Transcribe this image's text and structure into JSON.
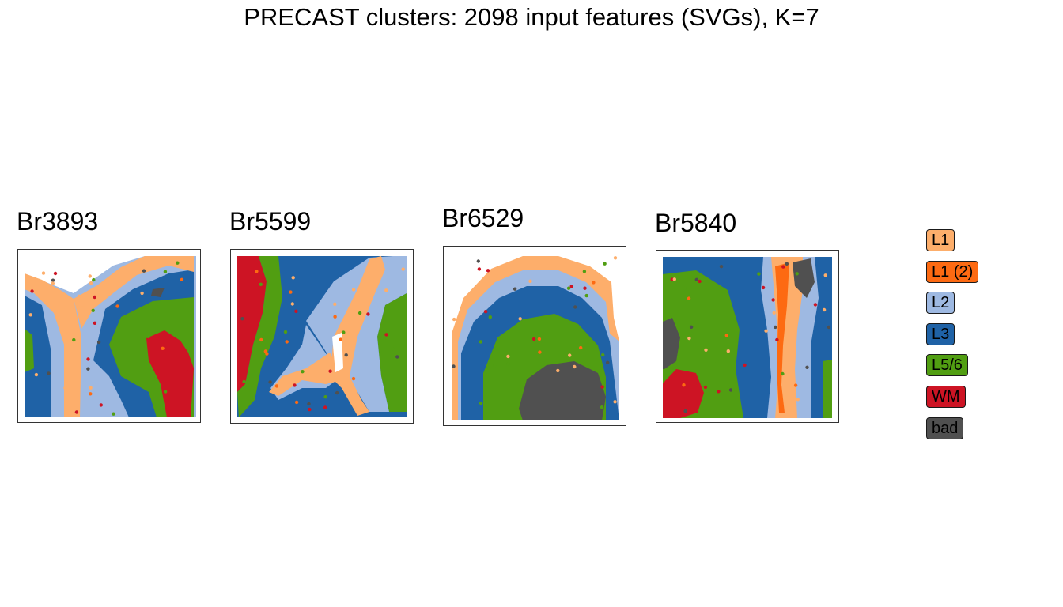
{
  "title": "PRECAST clusters: 2098 input features (SVGs), K=7",
  "chart_data": {
    "type": "scatter",
    "title": "PRECAST clusters: 2098 input features (SVGs), K=7",
    "legend": {
      "placement": "right",
      "entries": [
        {
          "label": "L1",
          "color": "#FDAE6B",
          "text_color": "#000000"
        },
        {
          "label": "L1 (2)",
          "color": "#FD6A12",
          "text_color": "#000000"
        },
        {
          "label": "L2",
          "color": "#9EB9E2",
          "text_color": "#000000"
        },
        {
          "label": "L3",
          "color": "#1F62A6",
          "text_color": "#000000"
        },
        {
          "label": "L5/6",
          "color": "#519E12",
          "text_color": "#000000"
        },
        {
          "label": "WM",
          "color": "#CD1424",
          "text_color": "#000000"
        },
        {
          "label": "bad",
          "color": "#505050",
          "text_color": "#000000"
        }
      ]
    },
    "panels": [
      {
        "sample": "Br3893"
      },
      {
        "sample": "Br5599"
      },
      {
        "sample": "Br6529"
      },
      {
        "sample": "Br5840"
      }
    ],
    "axes": "hidden",
    "grid": false
  }
}
